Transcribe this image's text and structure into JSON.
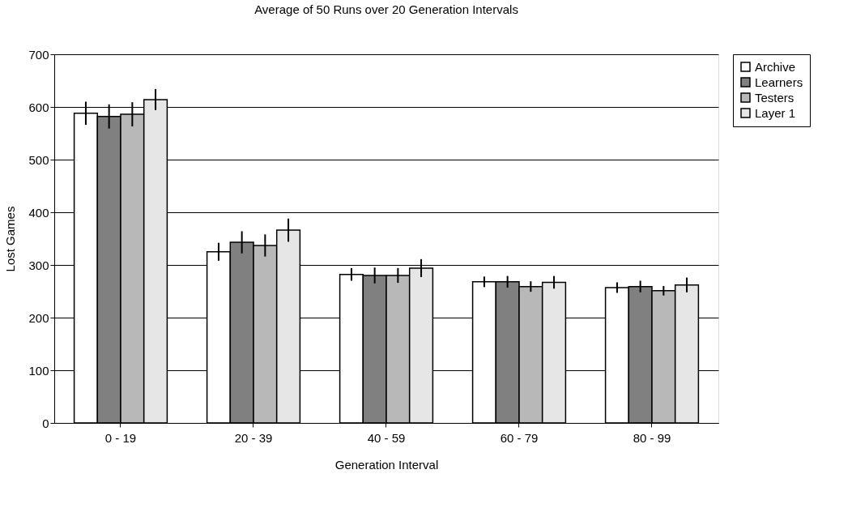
{
  "chart_data": {
    "type": "bar",
    "title": "Average of 50 Runs over 20 Generation Intervals",
    "xlabel": "Generation Interval",
    "ylabel": "Lost Games",
    "categories": [
      "0 - 19",
      "20 - 39",
      "40 - 59",
      "60 - 79",
      "80 - 99"
    ],
    "series": [
      {
        "name": "Archive",
        "color": "#ffffff",
        "values": [
          588,
          325,
          282,
          268,
          257
        ],
        "errors": [
          22,
          17,
          12,
          10,
          10
        ]
      },
      {
        "name": "Learners",
        "color": "#808080",
        "values": [
          582,
          343,
          280,
          268,
          259
        ],
        "errors": [
          23,
          21,
          15,
          11,
          11
        ]
      },
      {
        "name": "Testers",
        "color": "#b8b8b8",
        "values": [
          586,
          337,
          280,
          259,
          251
        ],
        "errors": [
          23,
          21,
          14,
          10,
          9
        ]
      },
      {
        "name": "Layer 1",
        "color": "#e6e6e6",
        "values": [
          614,
          366,
          294,
          267,
          262
        ],
        "errors": [
          20,
          22,
          17,
          12,
          14
        ]
      }
    ],
    "ylim": [
      0,
      700
    ],
    "yticks": [
      0,
      100,
      200,
      300,
      400,
      500,
      600,
      700
    ],
    "grid": "y",
    "legend": "right"
  }
}
